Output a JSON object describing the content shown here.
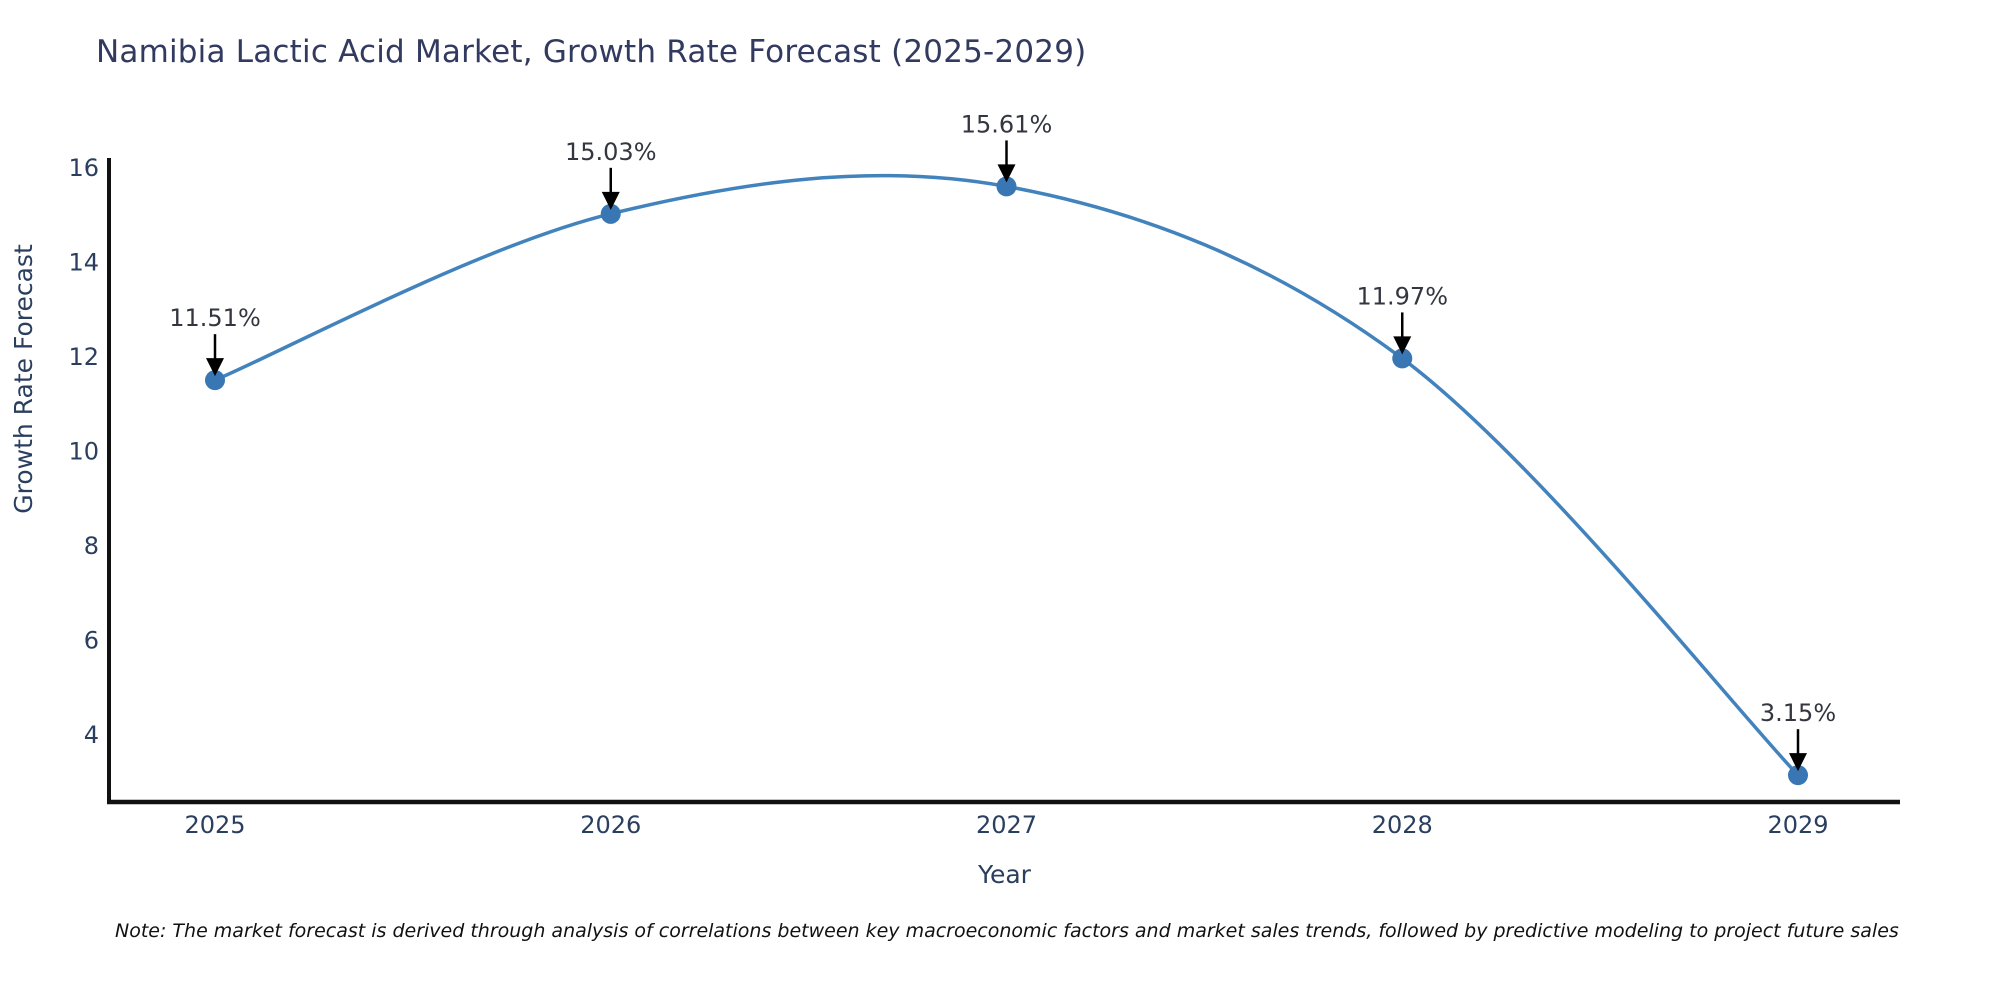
{
  "note": "Note: The market forecast is derived through analysis of correlations between key macroeconomic factors and market sales trends, followed by predictive modeling to project future sales",
  "chart_data": {
    "type": "line",
    "title": "Namibia Lactic Acid Market, Growth Rate Forecast (2025-2029)",
    "xlabel": "Year",
    "ylabel": "Growth Rate Forecast",
    "categories": [
      "2025",
      "2026",
      "2027",
      "2028",
      "2029"
    ],
    "series": [
      {
        "name": "Growth Rate Forecast",
        "values": [
          11.51,
          15.03,
          15.61,
          11.97,
          3.15
        ]
      }
    ],
    "point_labels": [
      "11.51%",
      "15.03%",
      "15.61%",
      "11.97%",
      "3.15%"
    ],
    "yticks": [
      16,
      14,
      12,
      10,
      8,
      6,
      4
    ],
    "ylim": [
      2.6,
      16.2
    ],
    "line_shape": "spline",
    "grid": false,
    "legend": "none",
    "colors": {
      "line": "#4383bd",
      "marker": "#3876b4",
      "axis": "#111111",
      "tick_label": "#2a3f5f",
      "title": "#323a60",
      "annotation": "#33363f",
      "arrow": "#000000",
      "background": "#ffffff"
    }
  }
}
